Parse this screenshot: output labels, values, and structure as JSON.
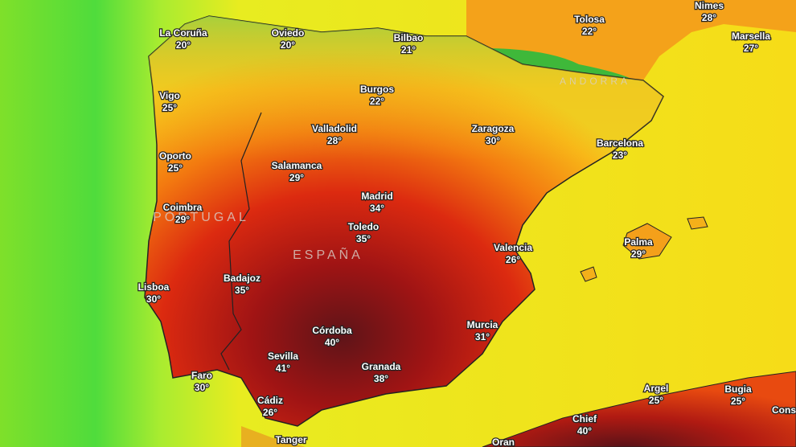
{
  "countries": [
    "PORTUGAL",
    "ESPAÑA",
    "ANDORRA"
  ],
  "cities": [
    {
      "name": "La Coruña",
      "temp": "20°"
    },
    {
      "name": "Oviedo",
      "temp": "20°"
    },
    {
      "name": "Bilbao",
      "temp": "21°"
    },
    {
      "name": "Tolosa",
      "temp": "22°"
    },
    {
      "name": "Nimes",
      "temp": "28°"
    },
    {
      "name": "Marsella",
      "temp": "27°"
    },
    {
      "name": "Vigo",
      "temp": "25°"
    },
    {
      "name": "Burgos",
      "temp": "22°"
    },
    {
      "name": "Valladolid",
      "temp": "28°"
    },
    {
      "name": "Zaragoza",
      "temp": "30°"
    },
    {
      "name": "Barcelona",
      "temp": "23°"
    },
    {
      "name": "Oporto",
      "temp": "25°"
    },
    {
      "name": "Salamanca",
      "temp": "29°"
    },
    {
      "name": "Madrid",
      "temp": "34°"
    },
    {
      "name": "Coimbra",
      "temp": "29°"
    },
    {
      "name": "Toledo",
      "temp": "35°"
    },
    {
      "name": "Valencia",
      "temp": "26°"
    },
    {
      "name": "Palma",
      "temp": "29°"
    },
    {
      "name": "Badajoz",
      "temp": "35°"
    },
    {
      "name": "Lisboa",
      "temp": "30°"
    },
    {
      "name": "Córdoba",
      "temp": "40°"
    },
    {
      "name": "Murcia",
      "temp": "31°"
    },
    {
      "name": "Sevilla",
      "temp": "41°"
    },
    {
      "name": "Granada",
      "temp": "38°"
    },
    {
      "name": "Faro",
      "temp": "30°"
    },
    {
      "name": "Cádiz",
      "temp": "26°"
    },
    {
      "name": "Argel",
      "temp": "25°"
    },
    {
      "name": "Bugia",
      "temp": "25°"
    },
    {
      "name": "Chief",
      "temp": "40°"
    },
    {
      "name": "Tanger"
    },
    {
      "name": "Oran"
    },
    {
      "name": "Cons"
    }
  ]
}
